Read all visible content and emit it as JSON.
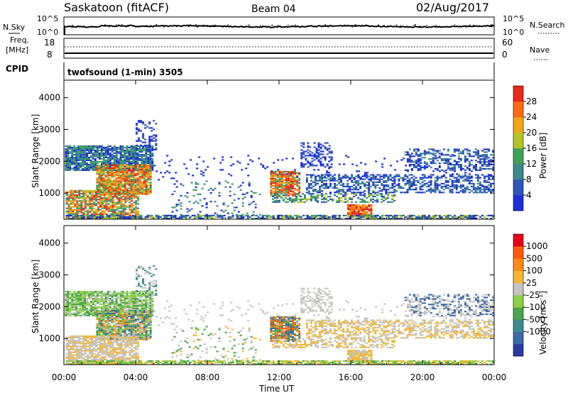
{
  "header": {
    "station": "Saskatoon (fitACF)",
    "beam": "Beam 04",
    "date": "02/Aug/2017"
  },
  "top_panel": {
    "left_label": "N.Sky",
    "right_label": "N.Search",
    "left_ticks": [
      "10^5",
      "10^0"
    ],
    "right_ticks": [
      "10^5",
      "10^0"
    ]
  },
  "freq_panel": {
    "left_label_1": "Freq.",
    "left_label_2": "[MHz]",
    "right_label": "Nave",
    "left_ticks": [
      "18",
      "8"
    ],
    "right_ticks": [
      "60",
      "0"
    ]
  },
  "cpid_panel": {
    "label": "CPID",
    "mode_text": "twofsound (1-min) 3505"
  },
  "chart_data": [
    {
      "type": "heatmap",
      "name": "power",
      "ylabel": "Slant Range [km]",
      "ylim": [
        180,
        4550
      ],
      "yticks": [
        "1000",
        "2000",
        "3000",
        "4000"
      ],
      "colorbar_label": "Power [dB]",
      "colorbar_ticks": [
        "4",
        "8",
        "12",
        "16",
        "20",
        "24",
        "28"
      ],
      "colors": [
        "#1d2fd6",
        "#2e55b8",
        "#3d8a8a",
        "#3fa05a",
        "#b3c42a",
        "#f2a51a",
        "#ff6a12",
        "#e8281a"
      ]
    },
    {
      "type": "heatmap",
      "name": "velocity",
      "ylabel": "Slant Range [km]",
      "ylim": [
        180,
        4550
      ],
      "yticks": [
        "1000",
        "2000",
        "3000",
        "4000"
      ],
      "colorbar_label": "Velocity [m s",
      "colorbar_unit_sup": "-1",
      "colorbar_ticks": [
        "1000",
        "500",
        "100",
        "25",
        "-25",
        "-100",
        "-500",
        "-1000"
      ],
      "colors": [
        "#2a3a9f",
        "#3a6aa8",
        "#3b8d8a",
        "#4aa64a",
        "#8cd046",
        "#c4c4c0",
        "#f5b733",
        "#ff8a1a",
        "#ff5a0a",
        "#e6001a"
      ]
    }
  ],
  "x_axis": {
    "label": "Time UT",
    "ticks": [
      "00:00",
      "04:00",
      "08:00",
      "12:00",
      "16:00",
      "20:00",
      "00:00"
    ],
    "range_hours": [
      0,
      24
    ]
  }
}
